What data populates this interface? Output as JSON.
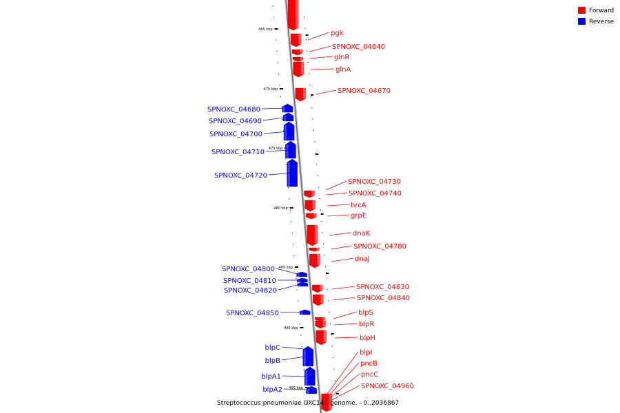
{
  "caption": "Streptococcus pneumoniae OXC141 genome. - 0..2036867",
  "legend": {
    "forward": {
      "label": "Forward",
      "color": "#ff0000"
    },
    "reverse": {
      "label": "Reverse",
      "color": "#0000ff"
    }
  },
  "axis_ticks": [
    "465 kbp",
    "470 kbp",
    "475 kbp",
    "480 kbp",
    "485 kbp",
    "490 kbp",
    "495 kbp"
  ],
  "forward_genes": [
    "pgk",
    "SPNOXC_04640",
    "glnR",
    "glnA",
    "SPNOXC_04670",
    "SPNOXC_04730",
    "SPNOXC_04740",
    "hrcA",
    "grpE",
    "dnaK",
    "SPNOXC_04780",
    "dnaJ",
    "SPNOXC_04830",
    "SPNOXC_04840",
    "blpS",
    "blpR",
    "blpH",
    "blpI",
    "pncB",
    "pncC",
    "SPNOXC_04960"
  ],
  "reverse_genes": [
    "SPNOXC_04680",
    "SPNOXC_04690",
    "SPNOXC_04700",
    "SPNOXC_04710",
    "SPNOXC_04720",
    "SPNOXC_04800",
    "SPNOXC_04810",
    "SPNOXC_04820",
    "SPNOXC_04850",
    "blpC",
    "blpB",
    "blpA1",
    "blpA2"
  ]
}
